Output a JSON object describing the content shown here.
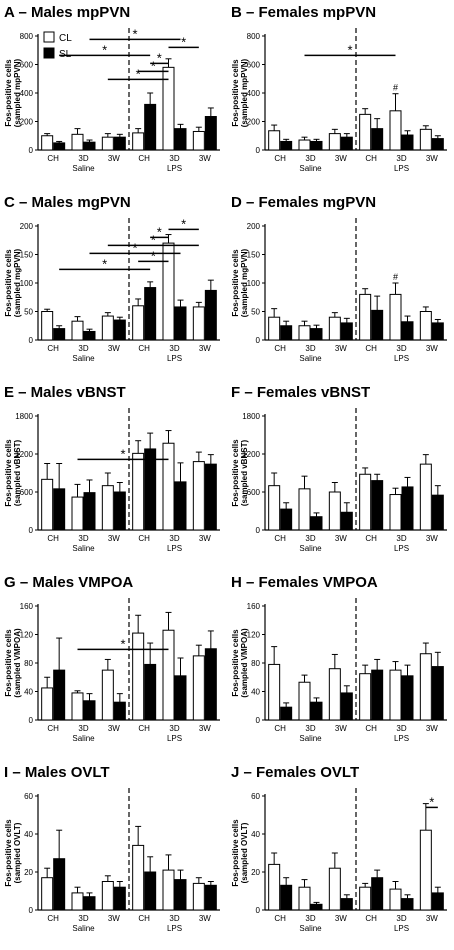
{
  "figure": {
    "legend": {
      "cl": "CL",
      "sl": "SL"
    },
    "group_labels": [
      "Saline",
      "LPS"
    ],
    "significance_mark": "*",
    "hash_mark": "#"
  },
  "chart_data": [
    {
      "type": "bar",
      "title": "A – Males mpPVN",
      "ylabel": "Fos-positive cells (sampled mpPVN)",
      "ylim": [
        0,
        800
      ],
      "yticks": [
        0,
        200,
        400,
        600,
        800
      ],
      "categories": [
        "CH",
        "3D",
        "3W",
        "CH",
        "3D",
        "3W"
      ],
      "groups": [
        "Saline",
        "LPS"
      ],
      "series": [
        {
          "name": "CL",
          "values": [
            100,
            110,
            90,
            120,
            580,
            130
          ],
          "errors": [
            15,
            40,
            25,
            30,
            60,
            30
          ]
        },
        {
          "name": "SL",
          "values": [
            50,
            55,
            90,
            320,
            150,
            235
          ],
          "errors": [
            10,
            15,
            20,
            80,
            30,
            60
          ]
        }
      ],
      "significance": [
        {
          "label": "*",
          "from": [
            2,
            "CL"
          ],
          "to": [
            4,
            "CL"
          ],
          "level": 2
        },
        {
          "label": "*",
          "from": [
            3,
            "CL"
          ],
          "to": [
            4,
            "CL"
          ],
          "level": 3
        },
        {
          "label": "*",
          "from": [
            3,
            "SL"
          ],
          "to": [
            4,
            "CL"
          ],
          "level": 4
        },
        {
          "label": "*",
          "from": [
            0,
            "SL"
          ],
          "to": [
            3,
            "SL"
          ],
          "level": 5
        },
        {
          "label": "*",
          "from": [
            4,
            "CL"
          ],
          "to": [
            5,
            "CL"
          ],
          "level": 6
        },
        {
          "label": "*",
          "from": [
            1,
            "SL"
          ],
          "to": [
            4,
            "SL"
          ],
          "level": 7
        }
      ]
    },
    {
      "type": "bar",
      "title": "B – Females mpPVN",
      "ylabel": "Fos-positive cells (sampled mpPVN)",
      "ylim": [
        0,
        800
      ],
      "yticks": [
        0,
        200,
        400,
        600,
        800
      ],
      "categories": [
        "CH",
        "3D",
        "3W",
        "CH",
        "3D",
        "3W"
      ],
      "groups": [
        "Saline",
        "LPS"
      ],
      "series": [
        {
          "name": "CL",
          "values": [
            135,
            70,
            115,
            250,
            275,
            145
          ],
          "errors": [
            40,
            20,
            30,
            40,
            120,
            25
          ]
        },
        {
          "name": "SL",
          "values": [
            60,
            60,
            90,
            150,
            105,
            80
          ],
          "errors": [
            15,
            15,
            25,
            70,
            30,
            20
          ]
        }
      ],
      "hash_on": [
        4
      ],
      "significance": [
        {
          "label": "*",
          "from": [
            1,
            "CL"
          ],
          "to": [
            4,
            "CL"
          ],
          "level": 5
        }
      ]
    },
    {
      "type": "bar",
      "title": "C – Males mgPVN",
      "ylabel": "Fos-positive cells (sampled mgPVN)",
      "ylim": [
        0,
        200
      ],
      "yticks": [
        0,
        50,
        100,
        150,
        200
      ],
      "categories": [
        "CH",
        "3D",
        "3W",
        "CH",
        "3D",
        "3W"
      ],
      "groups": [
        "Saline",
        "LPS"
      ],
      "series": [
        {
          "name": "CL",
          "values": [
            50,
            33,
            42,
            60,
            170,
            58
          ],
          "errors": [
            4,
            8,
            6,
            12,
            15,
            8
          ]
        },
        {
          "name": "SL",
          "values": [
            20,
            15,
            35,
            92,
            58,
            87
          ],
          "errors": [
            5,
            4,
            5,
            10,
            12,
            18
          ]
        }
      ],
      "significance": [
        {
          "label": "*",
          "from": [
            0,
            "SL"
          ],
          "to": [
            3,
            "SL"
          ],
          "level": 2
        },
        {
          "label": "*",
          "from": [
            3,
            "CL"
          ],
          "to": [
            4,
            "CL"
          ],
          "level": 3
        },
        {
          "label": "*",
          "from": [
            1,
            "SL"
          ],
          "to": [
            4,
            "SL"
          ],
          "level": 4
        },
        {
          "label": "*",
          "from": [
            2,
            "CL"
          ],
          "to": [
            5,
            "CL"
          ],
          "level": 5
        },
        {
          "label": "*",
          "from": [
            3,
            "SL"
          ],
          "to": [
            4,
            "CL"
          ],
          "level": 6
        },
        {
          "label": "*",
          "from": [
            4,
            "CL"
          ],
          "to": [
            5,
            "CL"
          ],
          "level": 7
        }
      ]
    },
    {
      "type": "bar",
      "title": "D – Females mgPVN",
      "ylabel": "Fos-positive cells (sampled mgPVN)",
      "ylim": [
        0,
        200
      ],
      "yticks": [
        0,
        50,
        100,
        150,
        200
      ],
      "categories": [
        "CH",
        "3D",
        "3W",
        "CH",
        "3D",
        "3W"
      ],
      "groups": [
        "Saline",
        "LPS"
      ],
      "series": [
        {
          "name": "CL",
          "values": [
            40,
            25,
            40,
            80,
            80,
            50
          ],
          "errors": [
            15,
            8,
            8,
            10,
            20,
            8
          ]
        },
        {
          "name": "SL",
          "values": [
            25,
            20,
            30,
            52,
            32,
            30
          ],
          "errors": [
            8,
            6,
            8,
            25,
            10,
            6
          ]
        }
      ],
      "hash_on": [
        4
      ],
      "significance": []
    },
    {
      "type": "bar",
      "title": "E – Males vBNST",
      "ylabel": "Fos-positive cells (sampled vBNST)",
      "ylim": [
        0,
        1800
      ],
      "yticks": [
        0,
        600,
        1200,
        1800
      ],
      "categories": [
        "CH",
        "3D",
        "3W",
        "CH",
        "3D",
        "3W"
      ],
      "groups": [
        "Saline",
        "LPS"
      ],
      "series": [
        {
          "name": "CL",
          "values": [
            800,
            520,
            700,
            1210,
            1370,
            1080
          ],
          "errors": [
            250,
            200,
            200,
            200,
            200,
            150
          ]
        },
        {
          "name": "SL",
          "values": [
            650,
            590,
            600,
            1280,
            760,
            1040
          ],
          "errors": [
            400,
            200,
            150,
            250,
            300,
            150
          ]
        }
      ],
      "significance": [
        {
          "label": "*",
          "from": [
            1,
            "CL"
          ],
          "to": [
            4,
            "CL"
          ],
          "level": 2
        }
      ]
    },
    {
      "type": "bar",
      "title": "F – Females vBNST",
      "ylabel": "Fos-positive cells (sampled vBNST)",
      "ylim": [
        0,
        1800
      ],
      "yticks": [
        0,
        600,
        1200,
        1800
      ],
      "categories": [
        "CH",
        "3D",
        "3W",
        "CH",
        "3D",
        "3W"
      ],
      "groups": [
        "Saline",
        "LPS"
      ],
      "series": [
        {
          "name": "CL",
          "values": [
            700,
            650,
            600,
            880,
            560,
            1040
          ],
          "errors": [
            200,
            200,
            150,
            100,
            100,
            150
          ]
        },
        {
          "name": "SL",
          "values": [
            330,
            210,
            280,
            780,
            680,
            550
          ],
          "errors": [
            100,
            60,
            150,
            100,
            150,
            150
          ]
        }
      ],
      "significance": []
    },
    {
      "type": "bar",
      "title": "G – Males VMPOA",
      "ylabel": "Fos-positive cells (sampled VMPOA)",
      "ylim": [
        0,
        160
      ],
      "yticks": [
        0,
        40,
        80,
        120,
        160
      ],
      "categories": [
        "CH",
        "3D",
        "3W",
        "CH",
        "3D",
        "3W"
      ],
      "groups": [
        "Saline",
        "LPS"
      ],
      "series": [
        {
          "name": "CL",
          "values": [
            45,
            38,
            70,
            122,
            126,
            90
          ],
          "errors": [
            15,
            3,
            15,
            25,
            25,
            15
          ]
        },
        {
          "name": "SL",
          "values": [
            70,
            27,
            25,
            78,
            62,
            100
          ],
          "errors": [
            45,
            10,
            12,
            30,
            25,
            25
          ]
        }
      ],
      "significance": [
        {
          "label": "*",
          "from": [
            1,
            "CL"
          ],
          "to": [
            4,
            "CL"
          ],
          "level": 2
        }
      ]
    },
    {
      "type": "bar",
      "title": "H – Females VMPOA",
      "ylabel": "Fos-positive cells (sampled VMPOA)",
      "ylim": [
        0,
        160
      ],
      "yticks": [
        0,
        40,
        80,
        120,
        160
      ],
      "categories": [
        "CH",
        "3D",
        "3W",
        "CH",
        "3D",
        "3W"
      ],
      "groups": [
        "Saline",
        "LPS"
      ],
      "series": [
        {
          "name": "CL",
          "values": [
            78,
            53,
            72,
            65,
            70,
            93
          ],
          "errors": [
            25,
            10,
            20,
            12,
            12,
            15
          ]
        },
        {
          "name": "SL",
          "values": [
            18,
            25,
            38,
            70,
            62,
            75
          ],
          "errors": [
            6,
            6,
            10,
            15,
            15,
            20
          ]
        }
      ],
      "significance": []
    },
    {
      "type": "bar",
      "title": "I – Males OVLT",
      "ylabel": "Fos-positive cells (sampled OVLT)",
      "ylim": [
        0,
        60
      ],
      "yticks": [
        0,
        20,
        40,
        60
      ],
      "categories": [
        "CH",
        "3D",
        "3W",
        "CH",
        "3D",
        "3W"
      ],
      "groups": [
        "Saline",
        "LPS"
      ],
      "series": [
        {
          "name": "CL",
          "values": [
            17,
            9,
            15,
            34,
            21,
            14
          ],
          "errors": [
            5,
            3,
            3,
            10,
            8,
            3
          ]
        },
        {
          "name": "SL",
          "values": [
            27,
            7,
            12,
            20,
            16,
            13
          ],
          "errors": [
            15,
            2,
            3,
            8,
            5,
            2
          ]
        }
      ],
      "significance": []
    },
    {
      "type": "bar",
      "title": "J – Females OVLT",
      "ylabel": "Fos-positive cells (sampled OVLT)",
      "ylim": [
        0,
        60
      ],
      "yticks": [
        0,
        20,
        40,
        60
      ],
      "categories": [
        "CH",
        "3D",
        "3W",
        "CH",
        "3D",
        "3W"
      ],
      "groups": [
        "Saline",
        "LPS"
      ],
      "series": [
        {
          "name": "CL",
          "values": [
            24,
            12,
            22,
            12,
            11,
            42
          ],
          "errors": [
            6,
            4,
            8,
            2,
            4,
            14
          ]
        },
        {
          "name": "SL",
          "values": [
            13,
            3,
            6,
            17,
            6,
            9
          ],
          "errors": [
            4,
            1,
            2,
            4,
            2,
            3
          ]
        }
      ],
      "significance": [
        {
          "label": "*",
          "from": [
            5,
            "CL"
          ],
          "to": [
            5,
            "SL"
          ],
          "level": 6
        }
      ]
    }
  ]
}
